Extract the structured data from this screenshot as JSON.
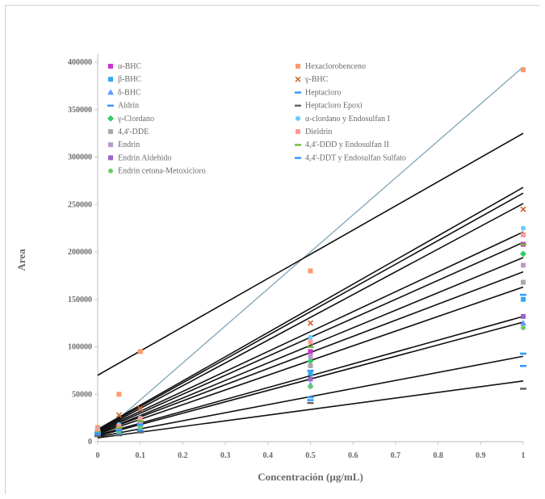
{
  "chart_data": {
    "type": "line",
    "xlabel": "Concentración (µg/mL)",
    "ylabel": "Area",
    "xlim": [
      0,
      1
    ],
    "ylim": [
      0,
      400000
    ],
    "x_ticks": [
      "0",
      "0.1",
      "0.2",
      "0.3",
      "0.4",
      "0.5",
      "0.6",
      "0.7",
      "0.8",
      "0.9",
      "1"
    ],
    "y_ticks": [
      "0",
      "50000",
      "100000",
      "150000",
      "200000",
      "250000",
      "300000",
      "350000",
      "400000"
    ],
    "grid": false,
    "legend_position": "top",
    "x": [
      0,
      0.05,
      0.1,
      0.5,
      1
    ],
    "series": [
      {
        "name": "α-BHC",
        "marker": "square",
        "color": "#cc33cc",
        "values": [
          12000,
          15000,
          22000,
          95000,
          208000
        ]
      },
      {
        "name": "β-BHC",
        "marker": "square",
        "color": "#33aaee",
        "values": [
          10000,
          12000,
          18000,
          72000,
          150000
        ]
      },
      {
        "name": "δ-BHC",
        "marker": "triangle",
        "color": "#6699ff",
        "values": [
          8000,
          10000,
          14000,
          60000,
          125000
        ]
      },
      {
        "name": "Aldrin",
        "marker": "dash",
        "color": "#3399ff",
        "values": [
          7000,
          8000,
          12000,
          47000,
          93000
        ]
      },
      {
        "name": "γ-Clordano",
        "marker": "diamond",
        "color": "#33cc66",
        "values": [
          12000,
          14000,
          20000,
          85000,
          198000
        ]
      },
      {
        "name": "4,4'-DDE",
        "marker": "square",
        "color": "#aaaaaa",
        "values": [
          10000,
          13000,
          19000,
          80000,
          168000
        ]
      },
      {
        "name": "Endrin",
        "marker": "square",
        "color": "#bb99cc",
        "values": [
          11000,
          14000,
          21000,
          90000,
          186000
        ]
      },
      {
        "name": "Endrin Aldehido",
        "marker": "square",
        "color": "#9966cc",
        "values": [
          9000,
          11000,
          16000,
          66000,
          132000
        ]
      },
      {
        "name": "Endrin cetona-Metoxicloro",
        "marker": "circle",
        "color": "#66cc66",
        "values": [
          8000,
          10000,
          15000,
          58000,
          120000
        ]
      },
      {
        "name": "Hexaclorobenceno",
        "marker": "square",
        "color": "#ff9966",
        "values": [
          15000,
          50000,
          95000,
          180000,
          392000
        ]
      },
      {
        "name": "γ-BHC",
        "marker": "x",
        "color": "#cc6633",
        "values": [
          11000,
          28000,
          35000,
          125000,
          245000
        ]
      },
      {
        "name": "Heptacloro",
        "marker": "dash",
        "color": "#3399ff",
        "values": [
          7000,
          8000,
          11000,
          44000,
          80000
        ]
      },
      {
        "name": "Heptacloro Epoxi",
        "marker": "dash",
        "color": "#666666",
        "values": [
          6000,
          7000,
          10000,
          41000,
          56000
        ]
      },
      {
        "name": "α-clordano y Endosulfan I",
        "marker": "circle",
        "color": "#66ccff",
        "values": [
          13000,
          18000,
          25000,
          110000,
          225000
        ]
      },
      {
        "name": "Dieldrin",
        "marker": "square",
        "color": "#ff9999",
        "values": [
          12000,
          16000,
          24000,
          105000,
          218000
        ]
      },
      {
        "name": "4,4'-DDD y Endosulfan II",
        "marker": "dash",
        "color": "#77bb44",
        "values": [
          10000,
          15000,
          22000,
          100000,
          208000
        ]
      },
      {
        "name": "4,4'-DDT y Endosulfan Sulfato",
        "marker": "dash",
        "color": "#3399ff",
        "values": [
          9000,
          12000,
          18000,
          75000,
          155000
        ]
      }
    ],
    "trendlines": [
      {
        "intercept": 5000,
        "slope": 390000,
        "color": "#88aabb"
      },
      {
        "intercept": 70000,
        "slope": 255000,
        "color": "#111111"
      },
      {
        "intercept": 13000,
        "slope": 255000,
        "color": "#111111"
      },
      {
        "intercept": 12000,
        "slope": 250000,
        "color": "#111111"
      },
      {
        "intercept": 11000,
        "slope": 240000,
        "color": "#111111"
      },
      {
        "intercept": 11000,
        "slope": 210000,
        "color": "#111111"
      },
      {
        "intercept": 10000,
        "slope": 200000,
        "color": "#111111"
      },
      {
        "intercept": 9000,
        "slope": 185000,
        "color": "#111111"
      },
      {
        "intercept": 9000,
        "slope": 170000,
        "color": "#111111"
      },
      {
        "intercept": 8000,
        "slope": 155000,
        "color": "#111111"
      },
      {
        "intercept": 7000,
        "slope": 125000,
        "color": "#111111"
      },
      {
        "intercept": 6000,
        "slope": 120000,
        "color": "#111111"
      },
      {
        "intercept": 5000,
        "slope": 85000,
        "color": "#111111"
      },
      {
        "intercept": 4000,
        "slope": 60000,
        "color": "#111111"
      }
    ]
  }
}
